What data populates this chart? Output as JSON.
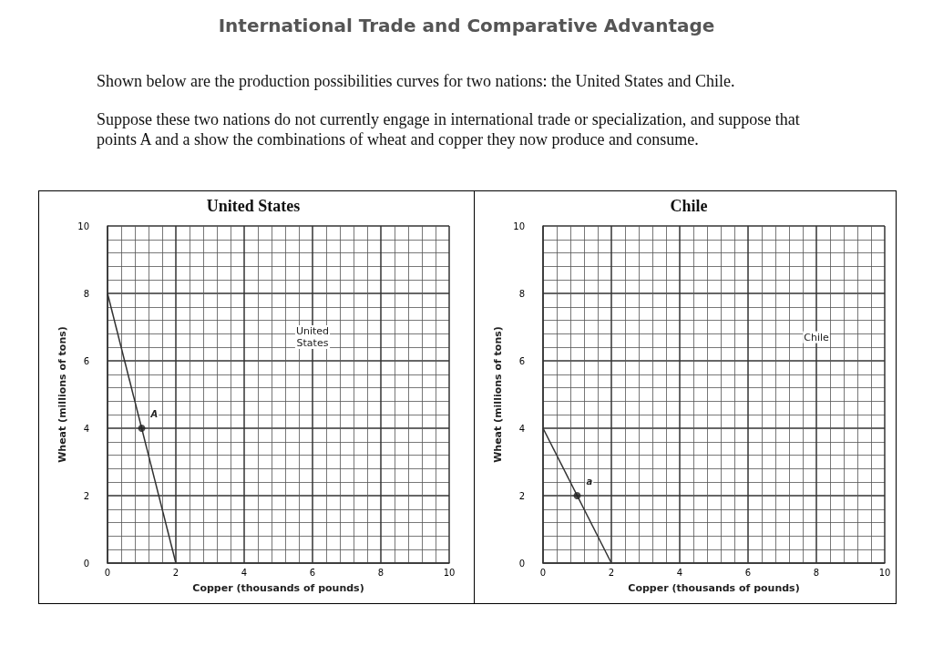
{
  "chart_data": [
    {
      "type": "other",
      "title": "International Trade and Comparative Advantage",
      "annotations": [
        "Shown below are the production possibilities curves for two nations: the United States and Chile.",
        "Suppose these two nations do not currently engage in international trade or specialization, and suppose that points A and a show the combinations of wheat and copper they now produce and consume."
      ]
    },
    {
      "type": "line",
      "title": "United States",
      "xlabel": "Copper (thousands of pounds)",
      "ylabel": "Wheat (millions of tons)",
      "xlim": [
        0,
        10
      ],
      "ylim": [
        0,
        10
      ],
      "xticks": [
        0,
        2,
        4,
        6,
        8,
        10
      ],
      "yticks": [
        0,
        2,
        4,
        6,
        8,
        10
      ],
      "grid": true,
      "series": [
        {
          "type": "line",
          "color": "#333333",
          "marker": "none",
          "x": [
            0,
            2
          ],
          "values": [
            8,
            0
          ]
        },
        {
          "type": "scatter",
          "color": "#222222",
          "marker": "circle",
          "x": [
            1
          ],
          "values": [
            4
          ]
        }
      ],
      "annotations": [
        {
          "text": "A",
          "x": 1,
          "y": 4
        },
        {
          "text": "United States",
          "x": 6,
          "y": 6.7
        }
      ]
    },
    {
      "type": "line",
      "title": "Chile",
      "xlabel": "Copper (thousands of pounds)",
      "ylabel": "Wheat (millions of tons)",
      "xlim": [
        0,
        10
      ],
      "ylim": [
        0,
        10
      ],
      "xticks": [
        0,
        2,
        4,
        6,
        8,
        10
      ],
      "yticks": [
        0,
        2,
        4,
        6,
        8,
        10
      ],
      "grid": true,
      "series": [
        {
          "type": "line",
          "color": "#333333",
          "marker": "none",
          "x": [
            0,
            2
          ],
          "values": [
            4,
            0
          ]
        },
        {
          "type": "scatter",
          "color": "#222222",
          "marker": "circle",
          "x": [
            1
          ],
          "values": [
            2
          ]
        }
      ],
      "annotations": [
        {
          "text": "a",
          "x": 1,
          "y": 2
        },
        {
          "text": "Chile",
          "x": 8,
          "y": 6.7
        }
      ]
    }
  ]
}
